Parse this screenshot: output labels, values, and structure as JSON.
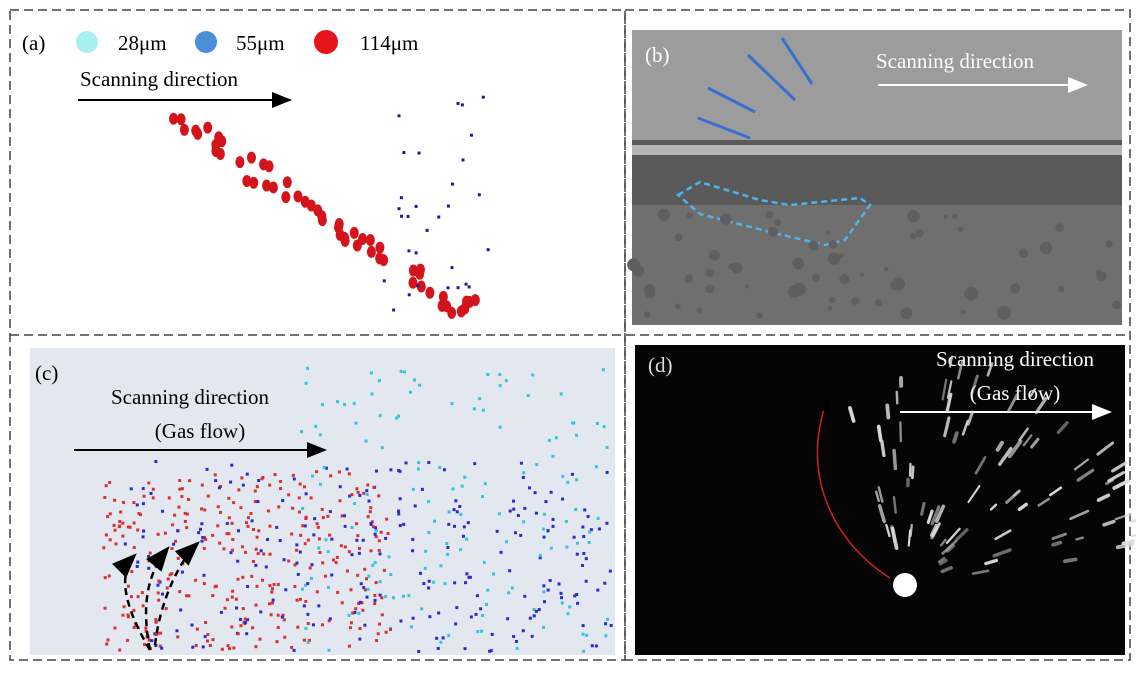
{
  "panels": [
    {
      "label": "(a)",
      "legend": [
        "28μm",
        "55μm",
        "114μm"
      ],
      "texts": [
        "Scanning direction"
      ]
    },
    {
      "label": "(b)",
      "texts": [
        "Scanning direction"
      ]
    },
    {
      "label": "(c)",
      "texts": [
        "Scanning direction",
        "(Gas flow)"
      ]
    },
    {
      "label": "(d)",
      "texts": [
        "Scanning direction",
        "(Gas flow)"
      ]
    }
  ]
}
